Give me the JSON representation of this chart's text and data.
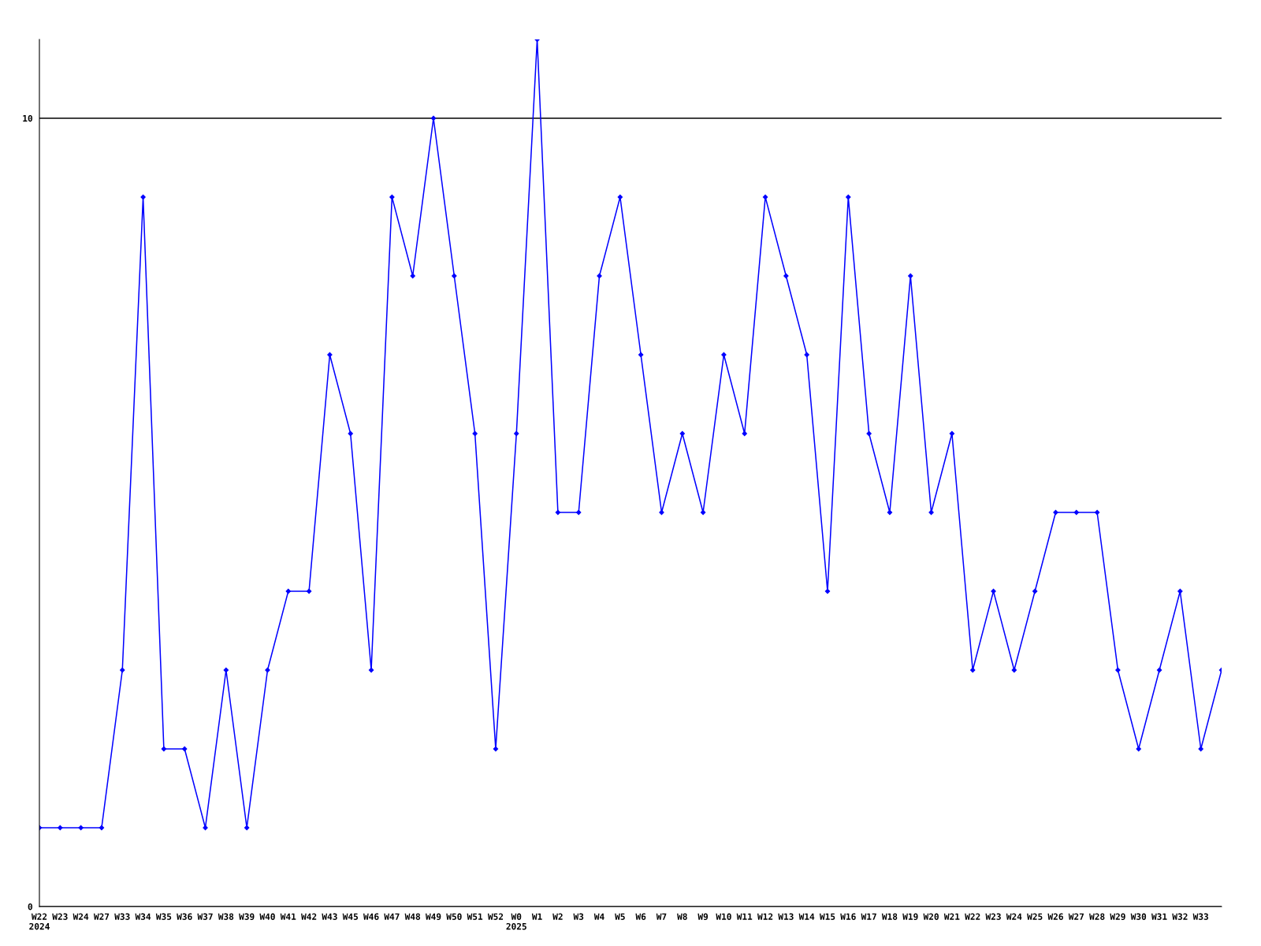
{
  "chart_data": {
    "type": "line",
    "categories": [
      "W22\n2024",
      "W23",
      "W24",
      "W27",
      "W33",
      "W34",
      "W35",
      "W36",
      "W37",
      "W38",
      "W39",
      "W40",
      "W41",
      "W42",
      "W43",
      "W45",
      "W46",
      "W47",
      "W48",
      "W49",
      "W50",
      "W51",
      "W52",
      "W0\n2025",
      "W1",
      "W2",
      "W3",
      "W4",
      "W5",
      "W6",
      "W7",
      "W8",
      "W9",
      "W10",
      "W11",
      "W12",
      "W13",
      "W14",
      "W15",
      "W16",
      "W17",
      "W18",
      "W19",
      "W20",
      "W21",
      "W22",
      "W23",
      "W24",
      "W25",
      "W26",
      "W27",
      "W28",
      "W29",
      "W30",
      "W31",
      "W32",
      "W33",
      null
    ],
    "series": [
      {
        "color": "#0000ff",
        "values": [
          1,
          1,
          1,
          1,
          3,
          9,
          2,
          2,
          1,
          3,
          1,
          3,
          4,
          4,
          7,
          6,
          3,
          9,
          8,
          10,
          8,
          6,
          2,
          6,
          11,
          5,
          5,
          8,
          9,
          7,
          5,
          6,
          5,
          7,
          6,
          9,
          8,
          7,
          4,
          9,
          6,
          5,
          8,
          5,
          6,
          3,
          4,
          3,
          4,
          5,
          5,
          5,
          3,
          2,
          3,
          4,
          2,
          3
        ]
      }
    ],
    "ylim": [
      0,
      11
    ],
    "yticks": [
      0,
      10
    ],
    "grid": "y",
    "marker": "diamond",
    "line_style": "solid",
    "legend": false
  }
}
